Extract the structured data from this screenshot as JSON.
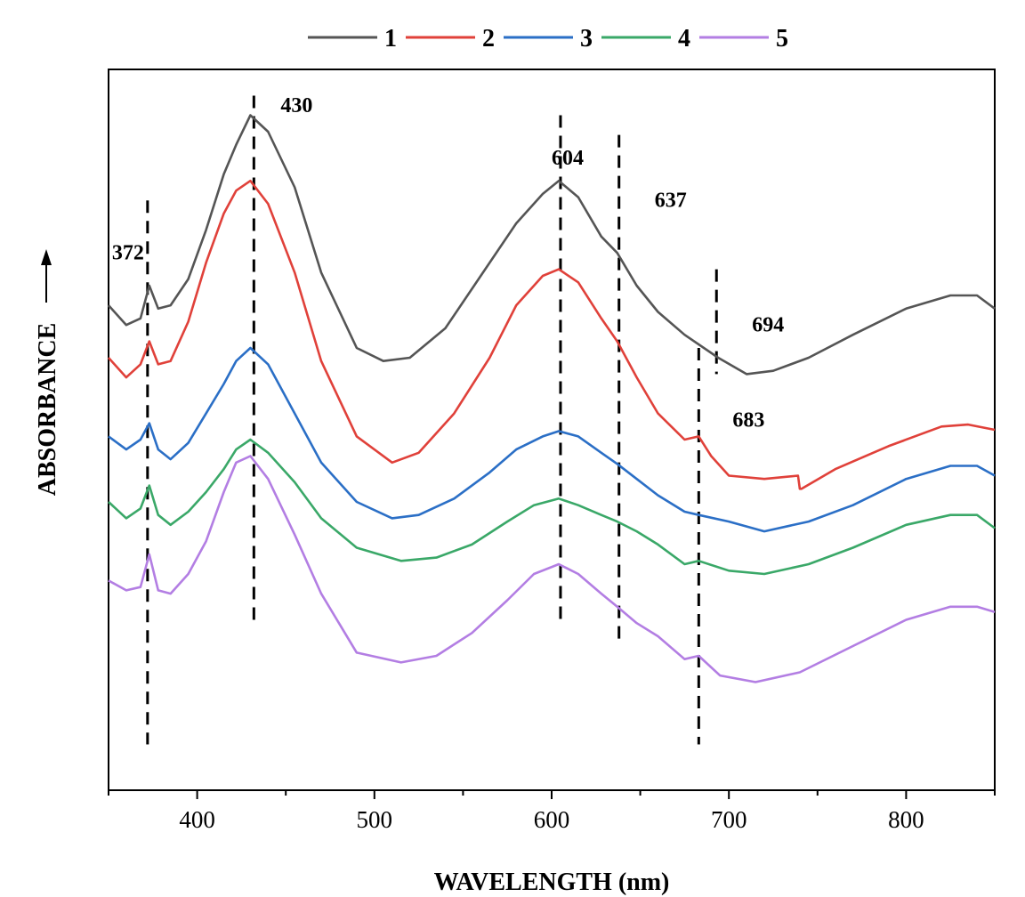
{
  "chart_data": {
    "type": "line",
    "title": "",
    "xlabel": "WAVELENGTH (nm)",
    "ylabel": "ABSORBANCE",
    "xlim": [
      350,
      850
    ],
    "x_ticks": [
      400,
      500,
      600,
      700,
      800
    ],
    "y_ticks_shown": false,
    "grid": false,
    "legend_position": "top",
    "colors": {
      "1": "#555555",
      "2": "#e0413a",
      "3": "#2b6fc6",
      "4": "#3aa868",
      "5": "#b37ee3"
    },
    "series": [
      {
        "name": "1",
        "x": [
          350,
          360,
          368,
          373,
          378,
          385,
          395,
          405,
          415,
          422,
          430,
          440,
          455,
          470,
          490,
          505,
          520,
          540,
          560,
          580,
          595,
          604,
          615,
          628,
          637,
          648,
          660,
          675,
          694,
          710,
          725,
          745,
          770,
          800,
          825,
          840,
          850
        ],
        "y": [
          5.4,
          5.1,
          5.2,
          5.7,
          5.35,
          5.4,
          5.8,
          6.55,
          7.4,
          7.85,
          8.3,
          8.05,
          7.2,
          5.9,
          4.75,
          4.55,
          4.6,
          5.05,
          5.85,
          6.65,
          7.1,
          7.3,
          7.05,
          6.45,
          6.2,
          5.7,
          5.3,
          4.95,
          4.6,
          4.35,
          4.4,
          4.6,
          4.95,
          5.35,
          5.55,
          5.55,
          5.35
        ]
      },
      {
        "name": "2",
        "x": [
          350,
          360,
          368,
          373,
          378,
          385,
          395,
          405,
          415,
          422,
          430,
          440,
          455,
          470,
          490,
          510,
          525,
          545,
          565,
          580,
          595,
          604,
          615,
          628,
          637,
          648,
          660,
          675,
          683,
          690,
          700,
          720,
          739,
          740,
          741,
          760,
          790,
          820,
          835,
          850
        ],
        "y": [
          4.6,
          4.3,
          4.5,
          4.85,
          4.5,
          4.55,
          5.15,
          6.05,
          6.8,
          7.15,
          7.3,
          6.95,
          5.9,
          4.55,
          3.4,
          3.0,
          3.15,
          3.75,
          4.6,
          5.4,
          5.85,
          5.95,
          5.75,
          5.2,
          4.85,
          4.3,
          3.75,
          3.35,
          3.4,
          3.1,
          2.8,
          2.75,
          2.8,
          2.6,
          2.6,
          2.9,
          3.25,
          3.55,
          3.58,
          3.5
        ]
      },
      {
        "name": "3",
        "x": [
          350,
          360,
          368,
          373,
          378,
          385,
          395,
          405,
          415,
          422,
          430,
          440,
          455,
          470,
          490,
          510,
          525,
          545,
          565,
          580,
          595,
          604,
          615,
          628,
          637,
          648,
          660,
          675,
          683,
          700,
          720,
          745,
          770,
          800,
          825,
          840,
          850
        ],
        "y": [
          3.4,
          3.2,
          3.35,
          3.6,
          3.2,
          3.05,
          3.3,
          3.75,
          4.2,
          4.55,
          4.75,
          4.5,
          3.75,
          3.0,
          2.4,
          2.15,
          2.2,
          2.45,
          2.85,
          3.2,
          3.4,
          3.48,
          3.4,
          3.15,
          2.98,
          2.75,
          2.5,
          2.25,
          2.2,
          2.1,
          1.95,
          2.1,
          2.35,
          2.75,
          2.95,
          2.95,
          2.8
        ]
      },
      {
        "name": "4",
        "x": [
          350,
          360,
          368,
          373,
          378,
          385,
          395,
          405,
          415,
          422,
          430,
          440,
          455,
          470,
          490,
          515,
          535,
          555,
          575,
          590,
          604,
          615,
          628,
          637,
          648,
          660,
          675,
          683,
          700,
          720,
          745,
          770,
          800,
          825,
          840,
          850
        ],
        "y": [
          2.4,
          2.15,
          2.3,
          2.65,
          2.2,
          2.05,
          2.25,
          2.55,
          2.9,
          3.2,
          3.35,
          3.15,
          2.7,
          2.15,
          1.7,
          1.5,
          1.55,
          1.75,
          2.1,
          2.35,
          2.45,
          2.35,
          2.2,
          2.1,
          1.95,
          1.75,
          1.45,
          1.5,
          1.35,
          1.3,
          1.45,
          1.7,
          2.05,
          2.2,
          2.2,
          2.0
        ]
      },
      {
        "name": "5",
        "x": [
          350,
          360,
          368,
          373,
          378,
          385,
          395,
          405,
          415,
          422,
          430,
          440,
          455,
          470,
          490,
          515,
          535,
          555,
          575,
          590,
          604,
          615,
          628,
          637,
          648,
          660,
          675,
          683,
          695,
          715,
          740,
          770,
          800,
          825,
          840,
          850
        ],
        "y": [
          1.2,
          1.05,
          1.1,
          1.6,
          1.05,
          1.0,
          1.3,
          1.8,
          2.55,
          3.0,
          3.1,
          2.75,
          1.9,
          1.0,
          0.1,
          -0.05,
          0.05,
          0.4,
          0.9,
          1.3,
          1.45,
          1.3,
          1.0,
          0.8,
          0.55,
          0.35,
          0.0,
          0.05,
          -0.25,
          -0.35,
          -0.2,
          0.2,
          0.6,
          0.8,
          0.8,
          0.72
        ]
      }
    ],
    "annotations": [
      {
        "label": "372",
        "x": 372,
        "line_from": -1.3,
        "line_to": 7.0,
        "text_y": 6.1
      },
      {
        "label": "430",
        "x": 432,
        "line_from": 0.55,
        "line_to": 8.6,
        "text_y": 8.35
      },
      {
        "label": "604",
        "x": 605,
        "line_from": 0.55,
        "line_to": 8.3,
        "text_y": 7.55
      },
      {
        "label": "637",
        "x": 638,
        "line_from": 0.25,
        "line_to": 8.0,
        "text_y": 6.9
      },
      {
        "label": "683",
        "x": 683,
        "line_from": -1.3,
        "line_to": 4.75,
        "text_y": 3.55
      },
      {
        "label": "694",
        "x": 693,
        "line_from": 4.35,
        "line_to": 5.95,
        "text_y": 5.0
      }
    ],
    "ylim": [
      -2.0,
      9.0
    ]
  }
}
